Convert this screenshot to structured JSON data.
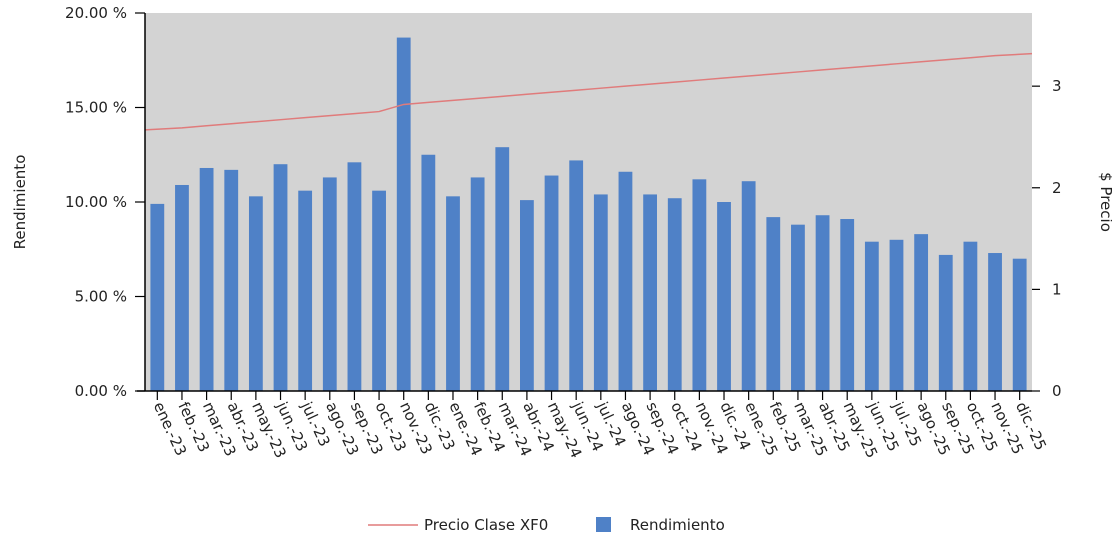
{
  "chart_data": {
    "type": "bar",
    "categories": [
      "ene.-23",
      "feb.-23",
      "mar.-23",
      "abr.-23",
      "may.-23",
      "jun.-23",
      "jul.-23",
      "ago.-23",
      "sep.-23",
      "oct.-23",
      "nov.-23",
      "dic.-23",
      "ene.-24",
      "feb.-24",
      "mar.-24",
      "abr.-24",
      "may.-24",
      "jun.-24",
      "jul.-24",
      "ago.-24",
      "sep.-24",
      "oct.-24",
      "nov.-24",
      "dic.-24",
      "ene.-25",
      "feb.-25",
      "mar.-25",
      "abr.-25",
      "may.-25",
      "jun.-25",
      "jul.-25",
      "ago.-25",
      "sep.-25",
      "oct.-25",
      "nov.-25",
      "dic.-25"
    ],
    "series": [
      {
        "name": "Rendimiento",
        "kind": "bar",
        "axis": "left",
        "color": "#4f81c7",
        "values": [
          9.9,
          10.9,
          11.8,
          11.7,
          10.3,
          12.0,
          10.6,
          11.3,
          12.1,
          10.6,
          18.7,
          12.5,
          10.3,
          11.3,
          12.9,
          10.1,
          11.4,
          12.2,
          10.4,
          11.6,
          10.4,
          10.2,
          11.2,
          10.0,
          11.1,
          9.2,
          8.8,
          9.3,
          9.1,
          7.9,
          8.0,
          8.3,
          7.2,
          7.9,
          7.3,
          7.0
        ]
      },
      {
        "name": "Precio Clase XF0",
        "kind": "line",
        "axis": "right",
        "color": "#e07b7b",
        "values": [
          2.57,
          2.59,
          2.61,
          2.63,
          2.65,
          2.67,
          2.69,
          2.71,
          2.73,
          2.75,
          2.82,
          2.84,
          2.86,
          2.88,
          2.9,
          2.92,
          2.94,
          2.96,
          2.98,
          3.0,
          3.02,
          3.04,
          3.06,
          3.08,
          3.1,
          3.12,
          3.14,
          3.16,
          3.18,
          3.2,
          3.22,
          3.24,
          3.26,
          3.28,
          3.3,
          3.32
        ]
      }
    ],
    "ylabel": "Rendimiento",
    "y2label": "$ Precio",
    "ylim": [
      0,
      20
    ],
    "y2lim": [
      0,
      3.72
    ],
    "yticks": [
      "0.00 %",
      "5.00 %",
      "10.00 %",
      "15.00 %",
      "20.00 %"
    ],
    "ytick_values": [
      0,
      5,
      10,
      15,
      20
    ],
    "y2ticks": [
      "0",
      "1",
      "2",
      "3"
    ],
    "y2tick_values": [
      0,
      1,
      2,
      3
    ],
    "grid": false,
    "plot_background": "#d3d3d3",
    "legend_position": "bottom-center",
    "legend": [
      {
        "label": "Precio Clase XF0",
        "kind": "line",
        "color": "#e07b7b"
      },
      {
        "label": "Rendimiento",
        "kind": "bar",
        "color": "#4f81c7"
      }
    ]
  }
}
